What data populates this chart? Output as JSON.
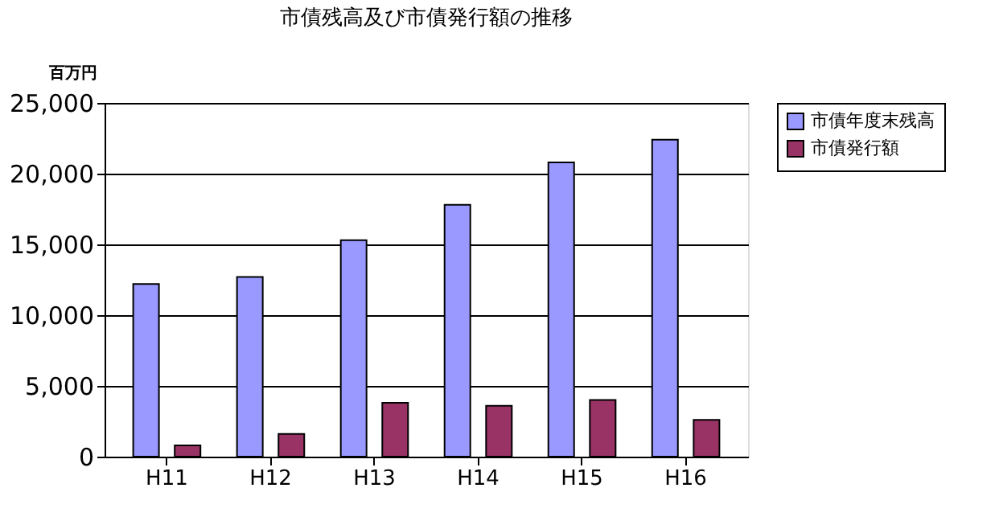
{
  "chart_data": {
    "type": "bar",
    "title": "市債残高及び市債発行額の推移",
    "ylabel": "百万円",
    "categories": [
      "H11",
      "H12",
      "H13",
      "H14",
      "H15",
      "H16"
    ],
    "series": [
      {
        "name": "市債年度末残高",
        "color": "#9999ff",
        "values": [
          12200,
          12700,
          15300,
          17800,
          20800,
          22400
        ]
      },
      {
        "name": "市債発行額",
        "color": "#993366",
        "values": [
          800,
          1600,
          3800,
          3600,
          4000,
          2600
        ]
      }
    ],
    "ylim": [
      0,
      25000
    ],
    "yticks": [
      0,
      {
        "value": 5000,
        "label": "5,000"
      },
      {
        "value": 10000,
        "label": "10,000"
      },
      {
        "value": 15000,
        "label": "15,000"
      },
      {
        "value": 20000,
        "label": "20,000"
      },
      {
        "value": 25000,
        "label": "25,000"
      }
    ],
    "grid": "y",
    "legend": "right"
  }
}
